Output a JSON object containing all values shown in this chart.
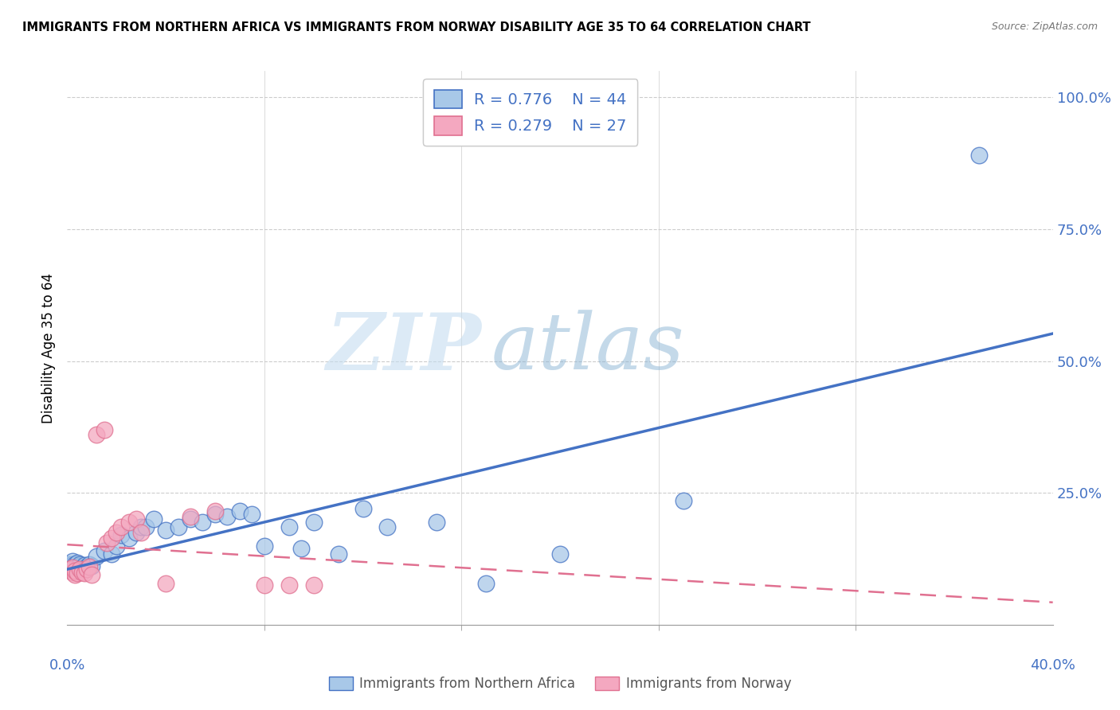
{
  "title": "IMMIGRANTS FROM NORTHERN AFRICA VS IMMIGRANTS FROM NORWAY DISABILITY AGE 35 TO 64 CORRELATION CHART",
  "source": "Source: ZipAtlas.com",
  "ylabel_label": "Disability Age 35 to 64",
  "legend_label_blue": "Immigrants from Northern Africa",
  "legend_label_pink": "Immigrants from Norway",
  "xlim": [
    0.0,
    0.4
  ],
  "ylim": [
    0.0,
    1.05
  ],
  "ytick_positions": [
    0.25,
    0.5,
    0.75,
    1.0
  ],
  "xtick_minor_positions": [
    0.08,
    0.16,
    0.24,
    0.32
  ],
  "color_blue": "#a8c8e8",
  "color_pink": "#f4a8c0",
  "line_blue": "#4472c4",
  "line_pink": "#e07090",
  "R_blue": 0.776,
  "N_blue": 44,
  "R_pink": 0.279,
  "N_pink": 27,
  "watermark_zip": "ZIP",
  "watermark_atlas": "atlas",
  "blue_points": [
    [
      0.001,
      0.115
    ],
    [
      0.002,
      0.115
    ],
    [
      0.002,
      0.12
    ],
    [
      0.003,
      0.11
    ],
    [
      0.003,
      0.115
    ],
    [
      0.004,
      0.11
    ],
    [
      0.004,
      0.118
    ],
    [
      0.005,
      0.112
    ],
    [
      0.005,
      0.115
    ],
    [
      0.006,
      0.108
    ],
    [
      0.007,
      0.113
    ],
    [
      0.008,
      0.11
    ],
    [
      0.009,
      0.115
    ],
    [
      0.01,
      0.112
    ],
    [
      0.012,
      0.13
    ],
    [
      0.015,
      0.14
    ],
    [
      0.018,
      0.135
    ],
    [
      0.02,
      0.15
    ],
    [
      0.022,
      0.17
    ],
    [
      0.025,
      0.165
    ],
    [
      0.028,
      0.175
    ],
    [
      0.03,
      0.185
    ],
    [
      0.032,
      0.185
    ],
    [
      0.035,
      0.2
    ],
    [
      0.04,
      0.18
    ],
    [
      0.045,
      0.185
    ],
    [
      0.05,
      0.2
    ],
    [
      0.055,
      0.195
    ],
    [
      0.06,
      0.21
    ],
    [
      0.065,
      0.205
    ],
    [
      0.07,
      0.215
    ],
    [
      0.075,
      0.21
    ],
    [
      0.08,
      0.15
    ],
    [
      0.09,
      0.185
    ],
    [
      0.095,
      0.145
    ],
    [
      0.1,
      0.195
    ],
    [
      0.11,
      0.135
    ],
    [
      0.12,
      0.22
    ],
    [
      0.13,
      0.185
    ],
    [
      0.15,
      0.195
    ],
    [
      0.17,
      0.078
    ],
    [
      0.2,
      0.135
    ],
    [
      0.25,
      0.235
    ],
    [
      0.37,
      0.89
    ]
  ],
  "pink_points": [
    [
      0.001,
      0.105
    ],
    [
      0.002,
      0.1
    ],
    [
      0.002,
      0.108
    ],
    [
      0.003,
      0.095
    ],
    [
      0.003,
      0.102
    ],
    [
      0.004,
      0.098
    ],
    [
      0.005,
      0.105
    ],
    [
      0.006,
      0.1
    ],
    [
      0.007,
      0.098
    ],
    [
      0.008,
      0.105
    ],
    [
      0.009,
      0.11
    ],
    [
      0.01,
      0.095
    ],
    [
      0.012,
      0.36
    ],
    [
      0.015,
      0.37
    ],
    [
      0.016,
      0.155
    ],
    [
      0.018,
      0.165
    ],
    [
      0.02,
      0.175
    ],
    [
      0.022,
      0.185
    ],
    [
      0.025,
      0.195
    ],
    [
      0.028,
      0.2
    ],
    [
      0.03,
      0.175
    ],
    [
      0.04,
      0.078
    ],
    [
      0.05,
      0.205
    ],
    [
      0.06,
      0.215
    ],
    [
      0.08,
      0.075
    ],
    [
      0.09,
      0.075
    ],
    [
      0.1,
      0.075
    ]
  ]
}
